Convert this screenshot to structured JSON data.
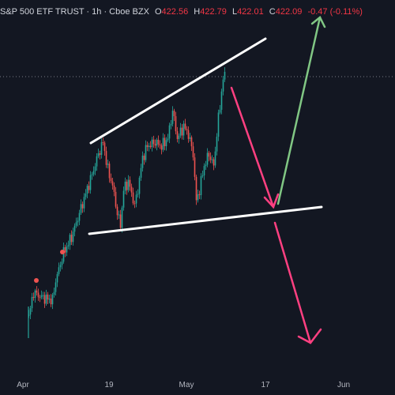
{
  "header": {
    "title": "S&P 500 ETF TRUST · 1h · Cboe BZX",
    "o_label": "O",
    "o_value": "422.56",
    "h_label": "H",
    "h_value": "422.79",
    "l_label": "L",
    "l_value": "422.01",
    "c_label": "C",
    "c_value": "422.09",
    "change": "-0.47 (-0.11%)"
  },
  "chart_data": {
    "type": "candlestick",
    "symbol": "S&P 500 ETF TRUST",
    "interval": "1h",
    "exchange": "Cboe BZX",
    "x_ticks": [
      "Apr",
      "19",
      "May",
      "17",
      "Jun"
    ],
    "last_price_line": 422.09,
    "approx_price_range": [
      400,
      423
    ],
    "pattern": "rising wedge with projected breakdown",
    "colors": {
      "background": "#131722",
      "up": "#26a69a",
      "down": "#ef5350",
      "trendline": "#ffffff",
      "bear_arrow": "#ff4081",
      "bull_arrow": "#81c784",
      "marker": "#ef5350"
    }
  },
  "x_axis": {
    "labels": [
      "Apr",
      "19",
      "May",
      "17",
      "Jun"
    ]
  }
}
